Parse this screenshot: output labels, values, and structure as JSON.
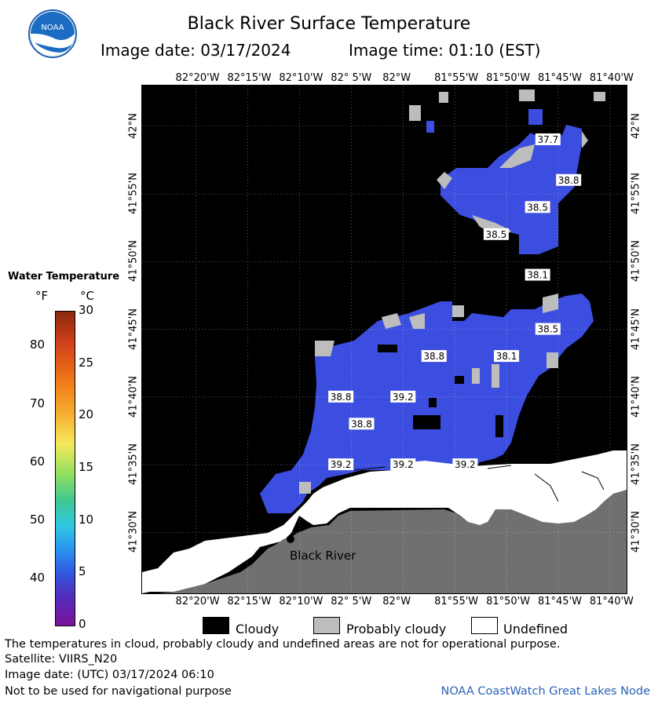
{
  "header": {
    "title": "Black River Surface Temperature",
    "image_date_label": "Image date: 03/17/2024",
    "image_time_label": "Image time: 01:10 (EST)",
    "logo_text": "NOAA"
  },
  "map": {
    "lon_ticks": [
      "82°20'W",
      "82°15'W",
      "82°10'W",
      "82° 5'W",
      "82°W",
      "81°55'W",
      "81°50'W",
      "81°45'W",
      "81°40'W"
    ],
    "lat_ticks": [
      "42°N",
      "41°55'N",
      "41°50'N",
      "41°45'N",
      "41°40'N",
      "41°35'N",
      "41°30'N"
    ],
    "place_label": "Black River",
    "colors": {
      "water": "#3c4ee0",
      "cloud": "#000000",
      "probably_cloudy": "#bdbdbd",
      "undefined": "#ffffff",
      "land": "#707070"
    }
  },
  "chart_data": {
    "type": "heatmap",
    "title": "Black River Surface Temperature",
    "temperature_labels": [
      {
        "value": "37.7",
        "lon": "81°46'W",
        "lat": "41°59'N"
      },
      {
        "value": "38.8",
        "lon": "81°44'W",
        "lat": "41°56'N"
      },
      {
        "value": "38.5",
        "lon": "81°47'W",
        "lat": "41°54'N"
      },
      {
        "value": "38.5",
        "lon": "81°51'W",
        "lat": "41°52'N"
      },
      {
        "value": "38.1",
        "lon": "81°47'W",
        "lat": "41°49'N"
      },
      {
        "value": "38.5",
        "lon": "81°46'W",
        "lat": "41°45'N"
      },
      {
        "value": "38.8",
        "lon": "81°57'W",
        "lat": "41°43'N"
      },
      {
        "value": "38.1",
        "lon": "81°50'W",
        "lat": "41°43'N"
      },
      {
        "value": "38.8",
        "lon": "82°6'W",
        "lat": "41°40'N"
      },
      {
        "value": "39.2",
        "lon": "82°W",
        "lat": "41°40'N"
      },
      {
        "value": "38.8",
        "lon": "82°4'W",
        "lat": "41°38'N"
      },
      {
        "value": "39.2",
        "lon": "82°6'W",
        "lat": "41°35'N"
      },
      {
        "value": "39.2",
        "lon": "82°W",
        "lat": "41°35'N"
      },
      {
        "value": "39.2",
        "lon": "81°54'W",
        "lat": "41°35'N"
      }
    ],
    "colorbar": {
      "title": "Water Temperature",
      "unit_f": "°F",
      "unit_c": "°C",
      "f_ticks": [
        "80",
        "70",
        "60",
        "50",
        "40"
      ],
      "c_ticks": [
        "30",
        "25",
        "20",
        "15",
        "10",
        "5",
        "0"
      ],
      "range_c": [
        0,
        30
      ]
    },
    "legend": [
      {
        "label": "Cloudy",
        "color": "#000000"
      },
      {
        "label": "Probably cloudy",
        "color": "#bdbdbd"
      },
      {
        "label": "Undefined",
        "color": "#ffffff"
      }
    ]
  },
  "footer": {
    "note": "The temperatures in cloud, probably cloudy and undefined areas are not for operational purpose.",
    "satellite": "Satellite: VIIRS_N20",
    "utc_date": "Image date: (UTC) 03/17/2024  06:10",
    "nav_warning": "Not to be used for navigational purpose",
    "credit": "NOAA CoastWatch Great Lakes Node"
  }
}
